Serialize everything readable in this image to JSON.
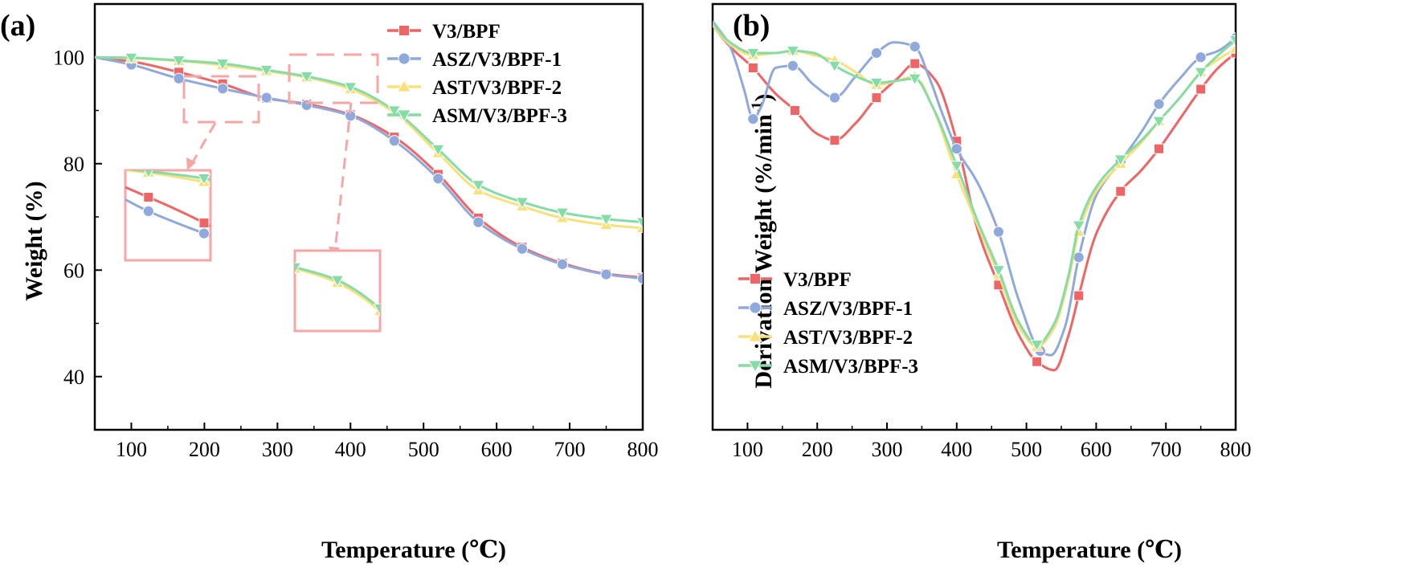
{
  "colors": {
    "V3/BPF": "#ef6464",
    "ASZ/V3/BPF-1": "#8fa9dc",
    "AST/V3/BPF-2": "#f8e07a",
    "ASM/V3/BPF-3": "#86dca7",
    "zoom_box": "#f6a6a6"
  },
  "chart_data": [
    {
      "type": "line",
      "panel_label": "(a)",
      "title": "",
      "xlabel": "Temperature (℃)",
      "ylabel": "Weight (%)",
      "xlim": [
        50,
        800
      ],
      "ylim": [
        30,
        110
      ],
      "xticks": [
        100,
        200,
        300,
        400,
        500,
        600,
        700,
        800
      ],
      "yticks": [
        40,
        60,
        80,
        100
      ],
      "legend_position": "top-right",
      "series": [
        {
          "name": "V3/BPF",
          "marker": "square",
          "x": [
            50,
            100,
            165,
            225,
            285,
            340,
            400,
            460,
            520,
            575,
            635,
            690,
            750,
            800
          ],
          "y": [
            100,
            99.2,
            97.2,
            95.0,
            92.3,
            91.2,
            89.2,
            85.0,
            78.0,
            69.8,
            64.3,
            61.3,
            59.3,
            58.6
          ],
          "marker_x": [
            100,
            165,
            225,
            285,
            340,
            400,
            460,
            520,
            575,
            635,
            690,
            750,
            800
          ]
        },
        {
          "name": "ASZ/V3/BPF-1",
          "marker": "circle",
          "x": [
            50,
            100,
            165,
            225,
            285,
            340,
            400,
            460,
            520,
            575,
            635,
            690,
            750,
            800
          ],
          "y": [
            100,
            98.6,
            96.0,
            94.1,
            92.4,
            91.0,
            89.0,
            84.3,
            77.2,
            69.0,
            64.0,
            61.1,
            59.2,
            58.4
          ],
          "marker_x": [
            100,
            165,
            225,
            285,
            340,
            400,
            460,
            520,
            575,
            635,
            690,
            750,
            800
          ]
        },
        {
          "name": "AST/V3/BPF-2",
          "marker": "triangle-up",
          "x": [
            50,
            100,
            165,
            225,
            285,
            340,
            400,
            460,
            520,
            575,
            635,
            690,
            750,
            800
          ],
          "y": [
            100,
            99.8,
            99.3,
            98.5,
            97.4,
            96.2,
            94.0,
            89.6,
            82.0,
            75.0,
            72.0,
            69.8,
            68.5,
            67.9
          ],
          "marker_x": [
            100,
            165,
            225,
            285,
            340,
            400,
            460,
            520,
            575,
            635,
            690,
            750,
            800
          ]
        },
        {
          "name": "ASM/V3/BPF-3",
          "marker": "triangle-down",
          "x": [
            50,
            100,
            165,
            225,
            285,
            340,
            400,
            460,
            520,
            575,
            635,
            690,
            750,
            800
          ],
          "y": [
            100,
            99.9,
            99.4,
            98.8,
            97.6,
            96.4,
            94.4,
            90.0,
            82.7,
            76.0,
            72.8,
            70.8,
            69.6,
            69.0
          ],
          "marker_x": [
            100,
            165,
            225,
            285,
            340,
            400,
            460,
            520,
            575,
            635,
            690,
            750,
            800
          ]
        }
      ]
    },
    {
      "type": "line",
      "panel_label": "(b)",
      "title": "",
      "xlabel": "Temperature (℃)",
      "ylabel": "Derivation Weight (%/min",
      "ylabel_superscript": "-1",
      "ylabel_close": ")",
      "xlim": [
        50,
        800
      ],
      "ylim": [
        0,
        100
      ],
      "xticks": [
        100,
        200,
        300,
        400,
        500,
        600,
        700,
        800
      ],
      "yticks": [],
      "legend_position": "bottom-left",
      "series": [
        {
          "name": "V3/BPF",
          "marker": "square",
          "x": [
            50,
            75,
            108,
            140,
            168,
            200,
            225,
            255,
            285,
            315,
            340,
            370,
            400,
            430,
            460,
            490,
            515,
            540,
            560,
            575,
            600,
            635,
            665,
            690,
            720,
            750,
            775,
            800
          ],
          "y": [
            95.0,
            90.0,
            85.0,
            79.0,
            75.0,
            69.5,
            68.0,
            72.0,
            78.0,
            82.5,
            86.0,
            82.0,
            67.8,
            47.0,
            34.0,
            22.0,
            16.0,
            14.0,
            22.0,
            31.5,
            46.0,
            56.0,
            61.0,
            66.0,
            73.0,
            80.0,
            85.0,
            88.5
          ],
          "marker_x": [
            108,
            168,
            225,
            285,
            340,
            400,
            460,
            515,
            575,
            635,
            690,
            750,
            800
          ]
        },
        {
          "name": "ASZ/V3/BPF-1",
          "marker": "circle",
          "x": [
            50,
            75,
            95,
            108,
            120,
            140,
            165,
            195,
            225,
            255,
            285,
            310,
            340,
            360,
            380,
            400,
            430,
            460,
            490,
            520,
            535,
            555,
            575,
            600,
            635,
            665,
            690,
            720,
            750,
            775,
            800
          ],
          "y": [
            96.0,
            90.0,
            80.0,
            73.0,
            76.0,
            85.0,
            85.5,
            81.0,
            78.0,
            83.0,
            88.5,
            91.0,
            90.0,
            83.0,
            74.0,
            66.0,
            58.0,
            46.5,
            30.0,
            18.5,
            17.5,
            24.0,
            40.5,
            55.0,
            63.0,
            70.0,
            76.5,
            82.5,
            87.5,
            89.0,
            92.0
          ],
          "marker_x": [
            108,
            165,
            225,
            285,
            340,
            400,
            460,
            520,
            575,
            635,
            690,
            750,
            800
          ]
        },
        {
          "name": "AST/V3/BPF-2",
          "marker": "triangle-up",
          "x": [
            50,
            75,
            108,
            140,
            165,
            195,
            225,
            255,
            285,
            315,
            340,
            365,
            400,
            430,
            460,
            490,
            515,
            540,
            560,
            575,
            600,
            635,
            665,
            690,
            720,
            750,
            775,
            800
          ],
          "y": [
            95.0,
            90.5,
            88.0,
            88.5,
            89.0,
            88.0,
            86.8,
            84.0,
            81.0,
            82.0,
            83.0,
            76.0,
            60.0,
            48.0,
            36.5,
            24.0,
            19.5,
            24.0,
            35.0,
            46.5,
            56.0,
            62.5,
            67.5,
            72.5,
            78.0,
            84.0,
            87.0,
            89.5
          ],
          "marker_x": [
            108,
            165,
            225,
            285,
            340,
            400,
            460,
            515,
            575,
            635,
            690,
            750,
            800
          ]
        },
        {
          "name": "ASM/V3/BPF-3",
          "marker": "triangle-down",
          "x": [
            50,
            75,
            108,
            140,
            165,
            195,
            225,
            255,
            285,
            315,
            340,
            365,
            400,
            430,
            460,
            490,
            515,
            540,
            560,
            575,
            600,
            635,
            665,
            690,
            720,
            750,
            775,
            800
          ],
          "y": [
            95.5,
            91.0,
            88.5,
            88.5,
            89.0,
            88.5,
            85.5,
            83.0,
            81.5,
            82.0,
            82.5,
            76.0,
            62.0,
            49.0,
            37.5,
            25.0,
            20.0,
            25.0,
            36.0,
            48.0,
            57.0,
            63.5,
            68.0,
            72.5,
            78.0,
            84.0,
            88.0,
            91.5
          ],
          "marker_x": [
            108,
            165,
            225,
            285,
            340,
            400,
            460,
            515,
            575,
            635,
            690,
            750,
            800
          ]
        }
      ],
      "legend_entries": [
        "V3/BPF",
        "ASZ/V3/BPF-1",
        "AST/V3/BPF-2",
        "ASM/V3/BPF-3"
      ]
    }
  ]
}
